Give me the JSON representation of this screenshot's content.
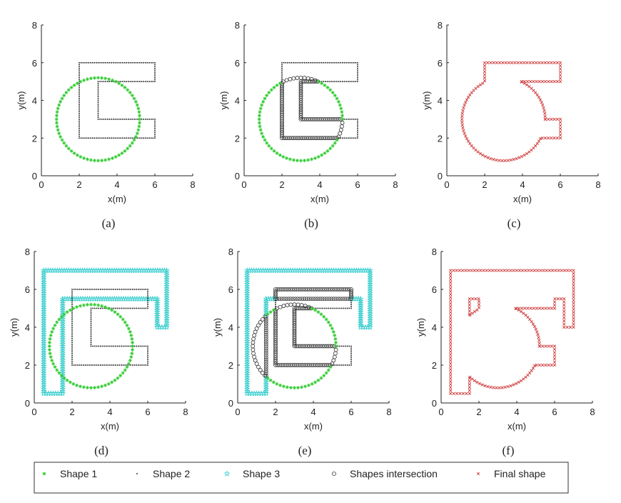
{
  "figure": {
    "colors": {
      "shape1": "#33cc33",
      "shape2": "#1a1a1a",
      "shape3": "#33cccc",
      "intersection": "#333333",
      "final": "#cc3333"
    }
  },
  "legend": {
    "items": [
      {
        "key": "shape1",
        "symbol": "*",
        "label": "Shape 1"
      },
      {
        "key": "shape2",
        "symbol": ".",
        "label": "Shape 2"
      },
      {
        "key": "shape3",
        "symbol": "☆",
        "label": "Shape 3"
      },
      {
        "key": "intersection",
        "symbol": "o",
        "label": "Shapes intersection"
      },
      {
        "key": "final",
        "symbol": "x",
        "label": "Final shape"
      }
    ]
  },
  "chart_data": [
    {
      "type": "scatter",
      "caption": "(a)",
      "xlabel": "x(m)",
      "ylabel": "y(m)",
      "xlim": [
        0,
        8
      ],
      "ylim": [
        0,
        8
      ],
      "xticks": [
        "0",
        "2",
        "4",
        "6",
        "8"
      ],
      "yticks": [
        "0",
        "2",
        "4",
        "6",
        "8"
      ],
      "series": [
        {
          "name": "Shape 1",
          "marker": "*",
          "shape": "circle",
          "center": [
            3,
            3
          ],
          "radius": 2.2
        },
        {
          "name": "Shape 2",
          "marker": ".",
          "shape": "polygon",
          "vertices": [
            [
              2,
              2
            ],
            [
              6,
              2
            ],
            [
              6,
              3
            ],
            [
              3,
              3
            ],
            [
              3,
              5
            ],
            [
              6,
              5
            ],
            [
              6,
              6
            ],
            [
              2,
              6
            ]
          ]
        }
      ]
    },
    {
      "type": "scatter",
      "caption": "(b)",
      "xlabel": "x(m)",
      "ylabel": "y(m)",
      "xlim": [
        0,
        8
      ],
      "ylim": [
        0,
        8
      ],
      "xticks": [
        "0",
        "2",
        "4",
        "6",
        "8"
      ],
      "yticks": [
        "0",
        "2",
        "4",
        "6",
        "8"
      ],
      "series": [
        {
          "name": "Shape 1",
          "marker": "*",
          "shape": "circle",
          "center": [
            3,
            3
          ],
          "radius": 2.2
        },
        {
          "name": "Shape 2",
          "marker": ".",
          "shape": "polygon",
          "vertices": [
            [
              2,
              2
            ],
            [
              6,
              2
            ],
            [
              6,
              3
            ],
            [
              3,
              3
            ],
            [
              3,
              5
            ],
            [
              6,
              5
            ],
            [
              6,
              6
            ],
            [
              2,
              6
            ]
          ]
        },
        {
          "name": "Shapes intersection",
          "marker": "o",
          "shape": "intersection"
        }
      ]
    },
    {
      "type": "scatter",
      "caption": "(c)",
      "xlabel": "x(m)",
      "ylabel": "y(m)",
      "xlim": [
        0,
        8
      ],
      "ylim": [
        0,
        8
      ],
      "xticks": [
        "0",
        "2",
        "4",
        "6",
        "8"
      ],
      "yticks": [
        "0",
        "2",
        "4",
        "6",
        "8"
      ],
      "series": [
        {
          "name": "Final shape",
          "marker": "x",
          "shape": "union-boundary"
        }
      ]
    },
    {
      "type": "scatter",
      "caption": "(d)",
      "xlabel": "x(m)",
      "ylabel": "y(m)",
      "xlim": [
        0,
        8
      ],
      "ylim": [
        0,
        8
      ],
      "xticks": [
        "0",
        "2",
        "4",
        "6",
        "8"
      ],
      "yticks": [
        "0",
        "2",
        "4",
        "6",
        "8"
      ],
      "series": [
        {
          "name": "Shape 1",
          "marker": "*",
          "shape": "circle",
          "center": [
            3,
            3
          ],
          "radius": 2.2
        },
        {
          "name": "Shape 2",
          "marker": ".",
          "shape": "polygon",
          "vertices": [
            [
              2,
              2
            ],
            [
              6,
              2
            ],
            [
              6,
              3
            ],
            [
              3,
              3
            ],
            [
              3,
              5
            ],
            [
              6,
              5
            ],
            [
              6,
              6
            ],
            [
              2,
              6
            ]
          ]
        },
        {
          "name": "Shape 3",
          "marker": "☆",
          "shape": "polygon",
          "vertices": [
            [
              0.5,
              0.5
            ],
            [
              1.5,
              0.5
            ],
            [
              1.5,
              5.5
            ],
            [
              6.5,
              5.5
            ],
            [
              6.5,
              4
            ],
            [
              7,
              4
            ],
            [
              7,
              7
            ],
            [
              0.5,
              7
            ]
          ]
        }
      ]
    },
    {
      "type": "scatter",
      "caption": "(e)",
      "xlabel": "x(m)",
      "ylabel": "y(m)",
      "xlim": [
        0,
        8
      ],
      "ylim": [
        0,
        8
      ],
      "xticks": [
        "0",
        "2",
        "4",
        "6",
        "8"
      ],
      "yticks": [
        "0",
        "2",
        "4",
        "6",
        "8"
      ],
      "series": [
        {
          "name": "Shape 1",
          "marker": "*",
          "shape": "circle",
          "center": [
            3,
            3
          ],
          "radius": 2.2
        },
        {
          "name": "Shape 2",
          "marker": ".",
          "shape": "polygon",
          "vertices": [
            [
              2,
              2
            ],
            [
              6,
              2
            ],
            [
              6,
              3
            ],
            [
              3,
              3
            ],
            [
              3,
              5
            ],
            [
              6,
              5
            ],
            [
              6,
              6
            ],
            [
              2,
              6
            ]
          ]
        },
        {
          "name": "Shape 3",
          "marker": "☆",
          "shape": "polygon",
          "vertices": [
            [
              0.5,
              0.5
            ],
            [
              1.5,
              0.5
            ],
            [
              1.5,
              5.5
            ],
            [
              6.5,
              5.5
            ],
            [
              6.5,
              4
            ],
            [
              7,
              4
            ],
            [
              7,
              7
            ],
            [
              0.5,
              7
            ]
          ]
        },
        {
          "name": "Shapes intersection",
          "marker": "o",
          "shape": "intersection"
        }
      ]
    },
    {
      "type": "scatter",
      "caption": "(f)",
      "xlabel": "x(m)",
      "ylabel": "y(m)",
      "xlim": [
        0,
        8
      ],
      "ylim": [
        0,
        8
      ],
      "xticks": [
        "0",
        "2",
        "4",
        "6",
        "8"
      ],
      "yticks": [
        "0",
        "2",
        "4",
        "6",
        "8"
      ],
      "series": [
        {
          "name": "Final shape",
          "marker": "x",
          "shape": "union-boundary"
        }
      ]
    }
  ]
}
